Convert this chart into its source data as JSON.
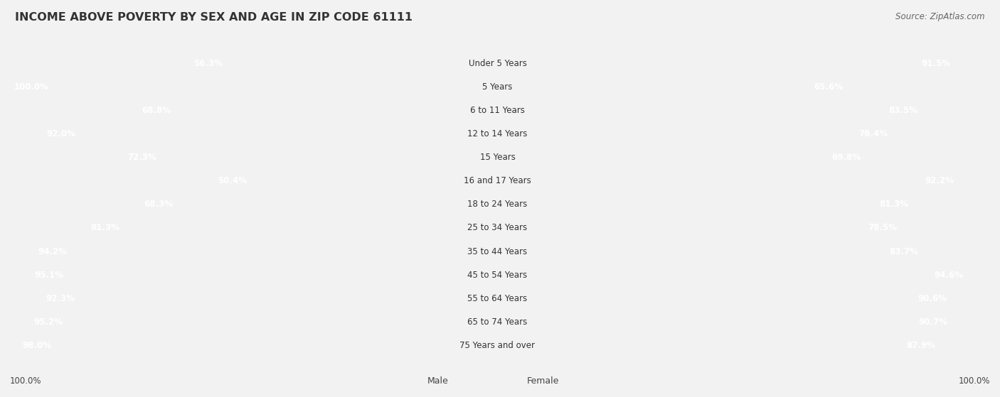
{
  "title": "INCOME ABOVE POVERTY BY SEX AND AGE IN ZIP CODE 61111",
  "source": "Source: ZipAtlas.com",
  "categories": [
    "Under 5 Years",
    "5 Years",
    "6 to 11 Years",
    "12 to 14 Years",
    "15 Years",
    "16 and 17 Years",
    "18 to 24 Years",
    "25 to 34 Years",
    "35 to 44 Years",
    "45 to 54 Years",
    "55 to 64 Years",
    "65 to 74 Years",
    "75 Years and over"
  ],
  "male_values": [
    56.3,
    100.0,
    68.8,
    92.0,
    72.3,
    50.4,
    68.3,
    81.3,
    94.2,
    95.1,
    92.3,
    95.2,
    98.0
  ],
  "female_values": [
    91.5,
    65.6,
    83.5,
    76.4,
    69.8,
    92.2,
    81.3,
    78.5,
    83.7,
    94.6,
    90.6,
    90.7,
    87.9
  ],
  "male_color": "#7fb8d8",
  "male_color_light": "#cce0ef",
  "female_color": "#f07bad",
  "female_color_light": "#f9c5d8",
  "bg_color": "#f2f2f2",
  "row_bg_color": "#e8e8e8",
  "title_fontsize": 11.5,
  "label_fontsize": 8.5,
  "source_fontsize": 8.5,
  "legend_fontsize": 9
}
